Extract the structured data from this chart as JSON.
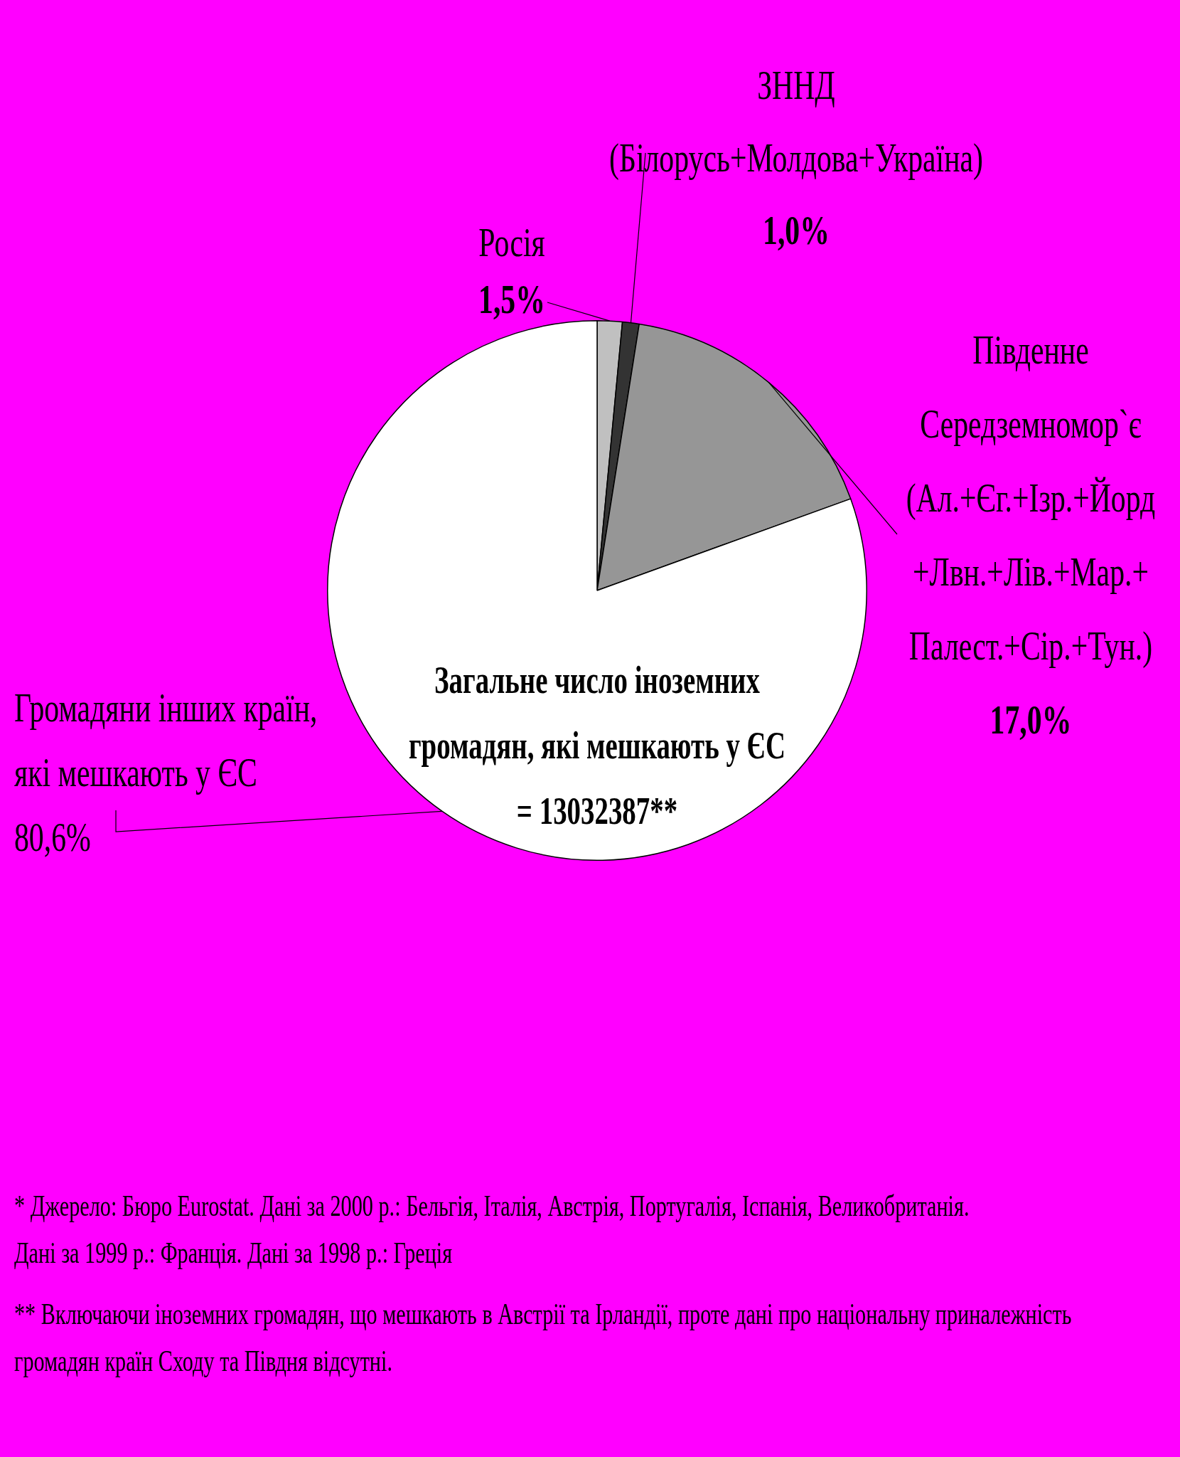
{
  "chart_data": {
    "type": "pie",
    "categories": [
      "Росія",
      "ЗННД\n(Білорусь+Молдова+Україна)",
      "Південне\nСередземномор`є\n(Ал.+Єг.+Ізр.+Йорд\n+Лвн.+Лів.+Мар.+\nПалест.+Сір.+Тун.)",
      "Громадяни інших країн,\nякі мешкають у ЄС"
    ],
    "values": [
      1.5,
      1.0,
      17.0,
      80.6
    ],
    "value_labels": [
      "1,5%",
      "1,0%",
      "17,0%",
      "80,6%"
    ],
    "colors": [
      "#c0c0c0",
      "#333333",
      "#969696",
      "#ffffff"
    ],
    "annotations": [
      "Загальне число іноземних\nгромадян, які мешкають у ЄС\n= 13032387**",
      "* Джерело: Бюро Eurostat. Дані за 2000 р.: Бельгія, Італія, Австрія, Португалія, Іспанія, Великобританія.\nДані за 1999 р.: Франція. Дані за 1998 р.: Греція",
      "** Включаючи іноземних громадян, що мешкають в Австрії та Ірландії, проте дані про національну приналежність\nгромадян країн Сходу та Півдня відсутні."
    ],
    "legend": false
  }
}
